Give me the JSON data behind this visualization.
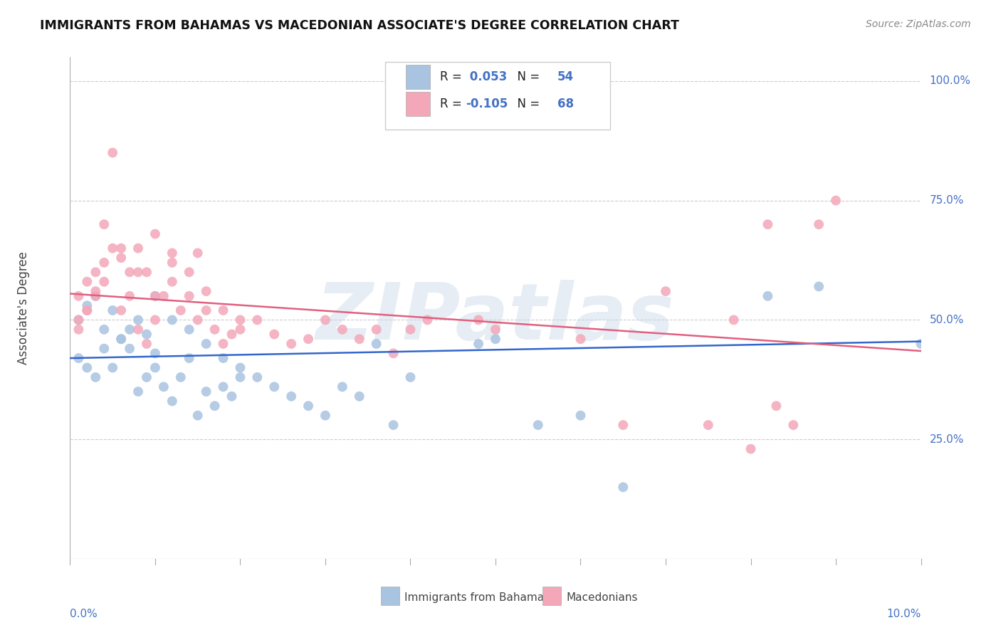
{
  "title": "IMMIGRANTS FROM BAHAMAS VS MACEDONIAN ASSOCIATE'S DEGREE CORRELATION CHART",
  "source": "Source: ZipAtlas.com",
  "ylabel": "Associate's Degree",
  "yticks": [
    0.0,
    0.25,
    0.5,
    0.75,
    1.0
  ],
  "ytick_labels": [
    "",
    "25.0%",
    "50.0%",
    "75.0%",
    "100.0%"
  ],
  "xtick_left": "0.0%",
  "xtick_right": "10.0%",
  "xmin": 0.0,
  "xmax": 0.1,
  "ymin": 0.0,
  "ymax": 1.05,
  "blue_R": 0.053,
  "blue_N": 54,
  "pink_R": -0.105,
  "pink_N": 68,
  "blue_color": "#a8c4e0",
  "pink_color": "#f4a7b9",
  "blue_line_color": "#3366cc",
  "pink_line_color": "#e06080",
  "watermark": "ZIPatlas",
  "legend_label_blue": "Immigrants from Bahamas",
  "legend_label_pink": "Macedonians",
  "blue_line_y0": 0.42,
  "blue_line_y1": 0.455,
  "pink_line_y0": 0.555,
  "pink_line_y1": 0.435,
  "blue_scatter_x": [
    0.001,
    0.002,
    0.003,
    0.004,
    0.005,
    0.006,
    0.007,
    0.008,
    0.009,
    0.01,
    0.001,
    0.002,
    0.003,
    0.004,
    0.005,
    0.006,
    0.007,
    0.008,
    0.009,
    0.01,
    0.011,
    0.012,
    0.013,
    0.014,
    0.015,
    0.016,
    0.017,
    0.018,
    0.019,
    0.02,
    0.01,
    0.012,
    0.014,
    0.016,
    0.018,
    0.02,
    0.022,
    0.024,
    0.026,
    0.028,
    0.03,
    0.032,
    0.034,
    0.036,
    0.038,
    0.04,
    0.05,
    0.06,
    0.082,
    0.088,
    0.048,
    0.055,
    0.065,
    0.1
  ],
  "blue_scatter_y": [
    0.5,
    0.53,
    0.55,
    0.48,
    0.52,
    0.46,
    0.44,
    0.5,
    0.47,
    0.43,
    0.42,
    0.4,
    0.38,
    0.44,
    0.4,
    0.46,
    0.48,
    0.35,
    0.38,
    0.4,
    0.36,
    0.33,
    0.38,
    0.42,
    0.3,
    0.35,
    0.32,
    0.36,
    0.34,
    0.38,
    0.55,
    0.5,
    0.48,
    0.45,
    0.42,
    0.4,
    0.38,
    0.36,
    0.34,
    0.32,
    0.3,
    0.36,
    0.34,
    0.45,
    0.28,
    0.38,
    0.46,
    0.3,
    0.55,
    0.57,
    0.45,
    0.28,
    0.15,
    0.45
  ],
  "pink_scatter_x": [
    0.001,
    0.002,
    0.003,
    0.004,
    0.005,
    0.006,
    0.007,
    0.008,
    0.009,
    0.01,
    0.001,
    0.002,
    0.003,
    0.004,
    0.005,
    0.006,
    0.007,
    0.008,
    0.009,
    0.01,
    0.011,
    0.012,
    0.013,
    0.014,
    0.015,
    0.016,
    0.017,
    0.018,
    0.019,
    0.02,
    0.01,
    0.012,
    0.014,
    0.016,
    0.018,
    0.02,
    0.022,
    0.024,
    0.026,
    0.028,
    0.03,
    0.032,
    0.034,
    0.036,
    0.038,
    0.04,
    0.042,
    0.048,
    0.05,
    0.06,
    0.065,
    0.07,
    0.075,
    0.08,
    0.082,
    0.085,
    0.09,
    0.088,
    0.083,
    0.078,
    0.015,
    0.012,
    0.008,
    0.006,
    0.004,
    0.003,
    0.002,
    0.001
  ],
  "pink_scatter_y": [
    0.55,
    0.58,
    0.6,
    0.62,
    0.85,
    0.65,
    0.6,
    0.65,
    0.6,
    0.55,
    0.5,
    0.52,
    0.56,
    0.7,
    0.65,
    0.52,
    0.55,
    0.48,
    0.45,
    0.5,
    0.55,
    0.58,
    0.52,
    0.55,
    0.5,
    0.52,
    0.48,
    0.45,
    0.47,
    0.5,
    0.68,
    0.64,
    0.6,
    0.56,
    0.52,
    0.48,
    0.5,
    0.47,
    0.45,
    0.46,
    0.5,
    0.48,
    0.46,
    0.48,
    0.43,
    0.48,
    0.5,
    0.5,
    0.48,
    0.46,
    0.28,
    0.56,
    0.28,
    0.23,
    0.7,
    0.28,
    0.75,
    0.7,
    0.32,
    0.5,
    0.64,
    0.62,
    0.6,
    0.63,
    0.58,
    0.55,
    0.52,
    0.48
  ]
}
